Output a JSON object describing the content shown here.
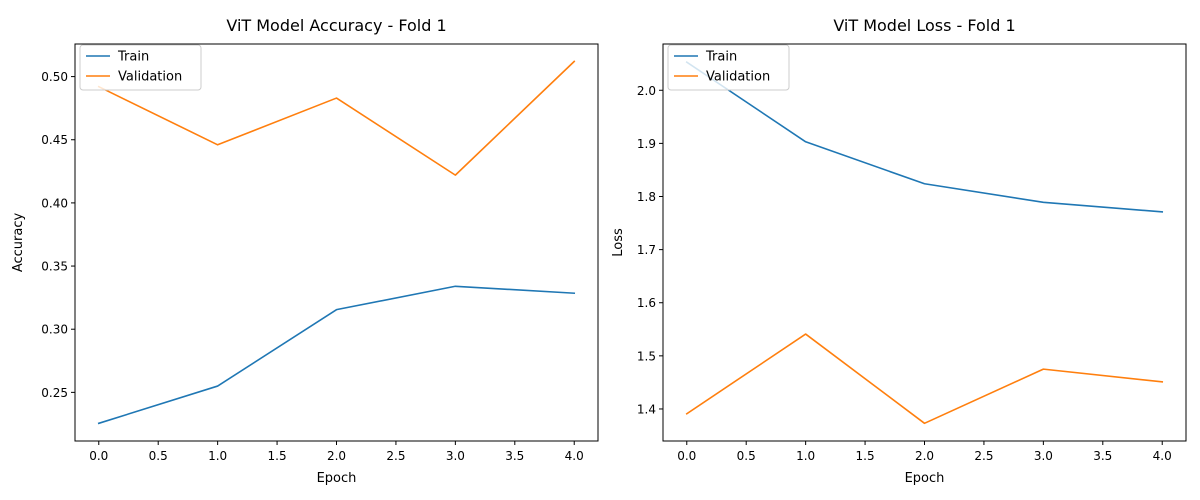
{
  "chart_data": [
    {
      "type": "line",
      "title": "ViT Model Accuracy - Fold 1",
      "xlabel": "Epoch",
      "ylabel": "Accuracy",
      "x": [
        0,
        1,
        2,
        3,
        4
      ],
      "xlim": [
        -0.2,
        4.2
      ],
      "ylim": [
        0.2115,
        0.5258
      ],
      "xticks": [
        0.0,
        0.5,
        1.0,
        1.5,
        2.0,
        2.5,
        3.0,
        3.5,
        4.0
      ],
      "xtick_labels": [
        "0.0",
        "0.5",
        "1.0",
        "1.5",
        "2.0",
        "2.5",
        "3.0",
        "3.5",
        "4.0"
      ],
      "yticks": [
        0.25,
        0.3,
        0.35,
        0.4,
        0.45,
        0.5
      ],
      "ytick_labels": [
        "0.25",
        "0.30",
        "0.35",
        "0.40",
        "0.45",
        "0.50"
      ],
      "grid": false,
      "legend": "upper left",
      "series": [
        {
          "name": "Train",
          "color": "#1f77b4",
          "values": [
            0.2255,
            0.255,
            0.3155,
            0.334,
            0.3285
          ]
        },
        {
          "name": "Validation",
          "color": "#ff7f0e",
          "values": [
            0.492,
            0.446,
            0.483,
            0.422,
            0.512
          ]
        }
      ]
    },
    {
      "type": "line",
      "title": "ViT Model Loss - Fold 1",
      "xlabel": "Epoch",
      "ylabel": "Loss",
      "x": [
        0,
        1,
        2,
        3,
        4
      ],
      "xlim": [
        -0.2,
        4.2
      ],
      "ylim": [
        1.3397,
        2.0871
      ],
      "xticks": [
        0.0,
        0.5,
        1.0,
        1.5,
        2.0,
        2.5,
        3.0,
        3.5,
        4.0
      ],
      "xtick_labels": [
        "0.0",
        "0.5",
        "1.0",
        "1.5",
        "2.0",
        "2.5",
        "3.0",
        "3.5",
        "4.0"
      ],
      "yticks": [
        1.4,
        1.5,
        1.6,
        1.7,
        1.8,
        1.9,
        2.0
      ],
      "ytick_labels": [
        "1.4",
        "1.5",
        "1.6",
        "1.7",
        "1.8",
        "1.9",
        "2.0"
      ],
      "grid": false,
      "legend": "upper left",
      "series": [
        {
          "name": "Train",
          "color": "#1f77b4",
          "values": [
            2.053,
            1.903,
            1.824,
            1.789,
            1.771
          ]
        },
        {
          "name": "Validation",
          "color": "#ff7f0e",
          "values": [
            1.391,
            1.541,
            1.373,
            1.475,
            1.451
          ]
        }
      ]
    }
  ]
}
